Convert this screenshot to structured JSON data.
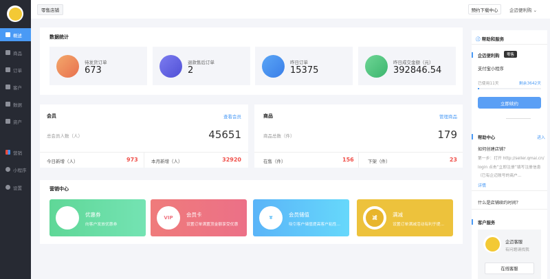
{
  "sidebar": {
    "items": [
      {
        "label": "概述",
        "icon": "home-icon"
      },
      {
        "label": "商品",
        "icon": "gift-icon"
      },
      {
        "label": "订单",
        "icon": "order-icon"
      },
      {
        "label": "客户",
        "icon": "users-icon"
      },
      {
        "label": "数据",
        "icon": "chart-icon"
      },
      {
        "label": "资产",
        "icon": "wallet-icon"
      },
      {
        "label": "营销",
        "icon": "grid-icon"
      },
      {
        "label": "小程序",
        "icon": "link-icon"
      },
      {
        "label": "设置",
        "icon": "gear-icon"
      }
    ]
  },
  "topbar": {
    "store": "零售店铺",
    "download": "预约下载中心",
    "user": "企迈便利购"
  },
  "stats": {
    "title": "数据统计",
    "items": [
      {
        "label": "待发货订单",
        "value": "673",
        "color": "#ec8a5a"
      },
      {
        "label": "退款售后订单",
        "value": "2",
        "color": "#6a6ae6"
      },
      {
        "label": "昨日订单",
        "value": "15375",
        "color": "#4a90f0"
      },
      {
        "label": "昨日成交金额（元）",
        "value": "392846.54",
        "color": "#4dc47f"
      }
    ]
  },
  "member": {
    "title": "会员",
    "link": "查看会员",
    "total_label": "总会员人数（人）",
    "total": "45651",
    "today_label": "今日新增（人）",
    "today": "973",
    "month_label": "本月新增（人）",
    "month": "32920"
  },
  "goods": {
    "title": "商品",
    "link": "管理商品",
    "total_label": "商品总数（件）",
    "total": "179",
    "on_label": "在售（件）",
    "on": "156",
    "off_label": "下架（件）",
    "off": "23"
  },
  "marketing": {
    "title": "营销中心",
    "items": [
      {
        "title": "优惠券",
        "desc": "向客户发放优惠券",
        "glyph": "",
        "color": "#5ed89a"
      },
      {
        "title": "会员卡",
        "desc": "设置订单满置顶金额享受优惠",
        "glyph": "VIP",
        "color": "#ef7481"
      },
      {
        "title": "会员储值",
        "desc": "吸引客户储值提高客户粘性...",
        "glyph": "¥",
        "color": "#5cbef8"
      },
      {
        "title": "满减",
        "desc": "设置订单满减活动有利于提...",
        "glyph": "减",
        "color": "#edc23c"
      }
    ]
  },
  "right": {
    "title": "帮助和服务",
    "store": "企迈便利购",
    "tag": "零售",
    "app": "支付宝小程序",
    "used": "已使用11天",
    "remain": "剩余3642天",
    "progress": 0.003,
    "renew": "立即续约",
    "help_title": "帮助中心",
    "help_enter": "进入",
    "q1": "如何创建店铺？",
    "a1": "第一步：打开 http://seller.qmai.cn/login 点击“立即注册”填写注册信息（已有企迈账号的商户...",
    "detail": "详情",
    "q2": "什么是店铺续约时间？",
    "cs_title": "客户服务",
    "cs_name": "企迈客服",
    "cs_desc": "有问题请找我",
    "cs_btn": "在线客服"
  }
}
